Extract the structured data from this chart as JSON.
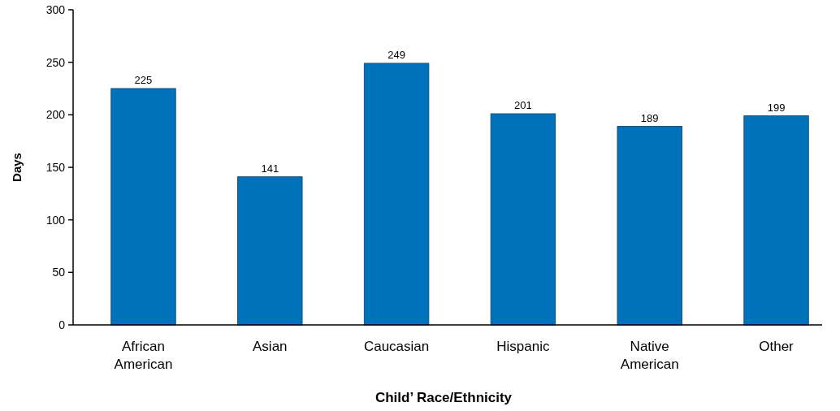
{
  "chart_data": {
    "type": "bar",
    "xlabel": "Child’ Race/Ethnicity",
    "ylabel": "Days",
    "categories": [
      "African American",
      "Asian",
      "Caucasian",
      "Hispanic",
      "Native American",
      "Other"
    ],
    "values": [
      225,
      141,
      249,
      201,
      189,
      199
    ],
    "color": "#0072bc",
    "ylim": [
      0,
      300
    ],
    "yticks": [
      0,
      50,
      100,
      150,
      200,
      250,
      300
    ],
    "data_labels": true,
    "grid": false
  }
}
